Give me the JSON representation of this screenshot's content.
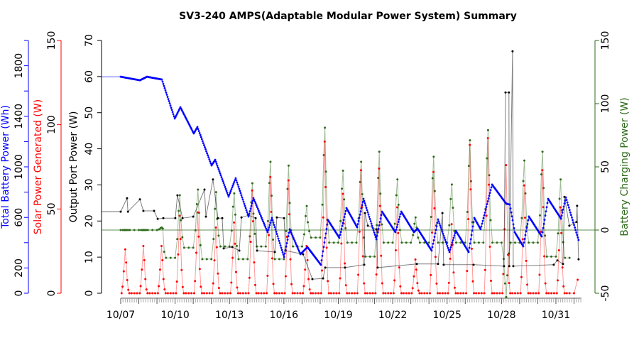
{
  "chart_data": {
    "type": "line",
    "title": "SV3-240 AMPS(Adaptable Modular Power System) Summary",
    "x_unit": "days since 10/07 00:00",
    "xlim": [
      0,
      25.4
    ],
    "x_tick_labels": [
      {
        "day": 0,
        "label": "10/07"
      },
      {
        "day": 3,
        "label": "10/10"
      },
      {
        "day": 6,
        "label": "10/13"
      },
      {
        "day": 9,
        "label": "10/16"
      },
      {
        "day": 12,
        "label": "10/19"
      },
      {
        "day": 15,
        "label": "10/22"
      },
      {
        "day": 18,
        "label": "10/25"
      },
      {
        "day": 21,
        "label": "10/28"
      },
      {
        "day": 24,
        "label": "10/31"
      }
    ],
    "axes": {
      "battery": {
        "label": "Total Battery Power (Wh)",
        "color": "#0000ff",
        "ylim": [
          0,
          2000
        ],
        "ticks": [
          0,
          200,
          400,
          600,
          800,
          1000,
          1200,
          1400,
          1600,
          1800,
          2000
        ],
        "tick_labels": [
          "0",
          "200",
          "600",
          "1000",
          "1400",
          "1800"
        ]
      },
      "solar": {
        "label": "Solar Power Generated (W)",
        "color": "#ff0000",
        "ylim": [
          0,
          150
        ],
        "ticks": [
          0,
          50,
          100,
          150
        ],
        "tick_labels": [
          "0",
          "50",
          "100",
          "150"
        ]
      },
      "output": {
        "label": "Output Port Power (W)",
        "color": "#000000",
        "ylim": [
          0,
          70
        ],
        "ticks": [
          0,
          10,
          20,
          30,
          40,
          50,
          60,
          70
        ],
        "tick_labels": [
          "0",
          "10",
          "20",
          "30",
          "40",
          "50",
          "60",
          "70"
        ]
      },
      "charging": {
        "label": "Battery Charging Power (W)",
        "color": "#2e6b1a",
        "ylim": [
          -50,
          150
        ],
        "ticks": [
          -50,
          0,
          50,
          100,
          150
        ],
        "tick_labels": [
          "-50",
          "0",
          "50",
          "100",
          "150"
        ]
      }
    },
    "series": [
      {
        "name": "Total Battery Power",
        "axis": "battery",
        "color": "#0000ff",
        "points": [
          [
            0,
            1713
          ],
          [
            1.06,
            1685
          ],
          [
            1.45,
            1713
          ],
          [
            2.27,
            1691
          ],
          [
            2.98,
            1382
          ],
          [
            3.29,
            1472
          ],
          [
            4.03,
            1264
          ],
          [
            4.23,
            1315
          ],
          [
            5.01,
            1011
          ],
          [
            5.21,
            1056
          ],
          [
            5.95,
            764
          ],
          [
            6.34,
            910
          ],
          [
            7.05,
            607
          ],
          [
            7.32,
            753
          ],
          [
            8.1,
            483
          ],
          [
            8.34,
            596
          ],
          [
            9.01,
            287
          ],
          [
            9.32,
            506
          ],
          [
            9.91,
            309
          ],
          [
            10.3,
            365
          ],
          [
            11.04,
            225
          ],
          [
            11.43,
            579
          ],
          [
            12.06,
            438
          ],
          [
            12.45,
            674
          ],
          [
            13.04,
            522
          ],
          [
            13.39,
            747
          ],
          [
            14.1,
            427
          ],
          [
            14.41,
            646
          ],
          [
            15.15,
            483
          ],
          [
            15.47,
            646
          ],
          [
            16.17,
            483
          ],
          [
            16.37,
            511
          ],
          [
            17.15,
            337
          ],
          [
            17.5,
            584
          ],
          [
            18.13,
            326
          ],
          [
            18.48,
            494
          ],
          [
            19.19,
            326
          ],
          [
            19.5,
            596
          ],
          [
            19.85,
            506
          ],
          [
            20.48,
            860
          ],
          [
            21.26,
            708
          ],
          [
            21.46,
            702
          ],
          [
            21.73,
            483
          ],
          [
            22.2,
            371
          ],
          [
            22.51,
            607
          ],
          [
            23.22,
            449
          ],
          [
            23.57,
            747
          ],
          [
            24.28,
            590
          ],
          [
            24.55,
            758
          ],
          [
            25.25,
            421
          ]
        ]
      },
      {
        "name": "Output Port Power",
        "axis": "output",
        "color": "#000000",
        "points": [
          [
            0,
            22.6
          ],
          [
            0.35,
            26.3
          ],
          [
            0.4,
            22.6
          ],
          [
            1.06,
            26
          ],
          [
            1.25,
            22.8
          ],
          [
            1.84,
            22.8
          ],
          [
            2.04,
            20.6
          ],
          [
            2.35,
            20.8
          ],
          [
            3.01,
            20.8
          ],
          [
            3.13,
            27.1
          ],
          [
            3.41,
            20.8
          ],
          [
            4.0,
            21.2
          ],
          [
            4.62,
            28.7
          ],
          [
            4.7,
            21.2
          ],
          [
            5.09,
            31.5
          ],
          [
            5.36,
            20.8
          ],
          [
            5.6,
            20.8
          ],
          [
            5.68,
            12.4
          ],
          [
            6.15,
            12.8
          ],
          [
            6.54,
            11.8
          ],
          [
            6.66,
            21
          ],
          [
            7.05,
            21.6
          ],
          [
            7.44,
            20.8
          ],
          [
            7.52,
            11.8
          ],
          [
            8.5,
            11.4
          ],
          [
            8.61,
            21
          ],
          [
            9.01,
            20.8
          ],
          [
            9.09,
            11.8
          ],
          [
            10.06,
            10.8
          ],
          [
            10.57,
            3.9
          ],
          [
            11.16,
            4.1
          ],
          [
            11.28,
            7.1
          ],
          [
            12.37,
            7.1
          ],
          [
            13.43,
            7.9
          ],
          [
            13.47,
            22.2
          ],
          [
            13.63,
            18.7
          ],
          [
            14.1,
            17.7
          ],
          [
            14.17,
            7.1
          ],
          [
            16.33,
            8.1
          ],
          [
            17.5,
            8.1
          ],
          [
            17.74,
            22.2
          ],
          [
            17.81,
            7.9
          ],
          [
            19.46,
            7.9
          ],
          [
            21.14,
            7.5
          ],
          [
            21.22,
            55.6
          ],
          [
            21.41,
            55.6
          ],
          [
            21.43,
            7.5
          ],
          [
            21.61,
            67
          ],
          [
            21.65,
            7.5
          ],
          [
            23.88,
            7.9
          ],
          [
            24.08,
            9.1
          ],
          [
            24.39,
            8.1
          ],
          [
            24.47,
            26.7
          ],
          [
            24.74,
            18.7
          ],
          [
            25.13,
            19.7
          ],
          [
            25.17,
            24.2
          ],
          [
            25.25,
            9.4
          ]
        ]
      },
      {
        "name": "Solar Power Generated",
        "axis": "solar",
        "color": "#ff0000",
        "daily_peaks": [
          26,
          28,
          28,
          46,
          48,
          39,
          42,
          61,
          69,
          67,
          28,
          90,
          59,
          73,
          74,
          51,
          20,
          72,
          41,
          88,
          92,
          76,
          64,
          73,
          51,
          8
        ]
      },
      {
        "name": "Battery Charging Power",
        "axis": "charging",
        "color": "#2e6b1a",
        "daily_peaks": [
          0,
          0,
          2,
          27.5,
          32,
          30,
          29,
          37,
          54,
          51,
          19,
          81,
          47,
          54,
          62,
          40,
          10,
          58,
          36,
          71,
          79,
          -53,
          55,
          62,
          40
        ],
        "night_levels": [
          0,
          0,
          -22,
          -14,
          -23,
          -13,
          -23,
          -13,
          -23,
          -13,
          -6,
          -10,
          -10,
          -21,
          -10,
          -10,
          -10,
          -10,
          -10,
          -10,
          -10,
          -10,
          -10,
          -21,
          -22
        ]
      }
    ],
    "grid": false
  }
}
